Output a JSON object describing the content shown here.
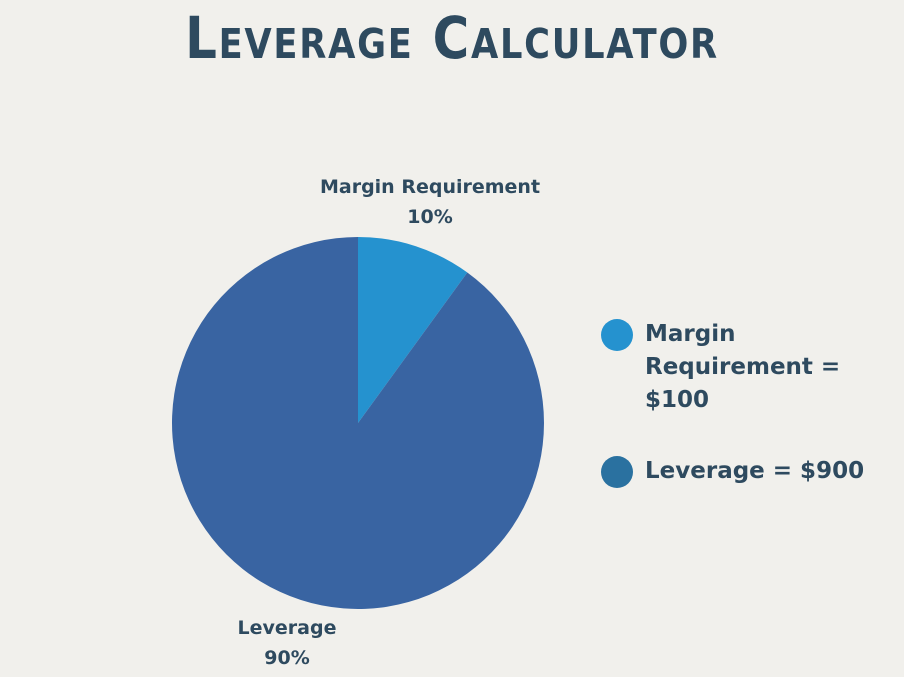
{
  "colors": {
    "background": "#f1f0ec",
    "text": "#2e4a5f",
    "margin_slice": "#2592cf",
    "leverage_slice": "#3964a2",
    "legend_leverage_swatch": "#2a71a0"
  },
  "chart_data": {
    "type": "pie",
    "title": "Leverage Calculator",
    "slices": [
      {
        "label": "Margin Requirement",
        "percent_label": "10%",
        "value": 10,
        "color": "#2592cf",
        "legend": "Margin Requirement = $100"
      },
      {
        "label": "Leverage",
        "percent_label": "90%",
        "value": 90,
        "color": "#3964a2",
        "legend": "Leverage = $900"
      }
    ],
    "legend_position": "right"
  }
}
